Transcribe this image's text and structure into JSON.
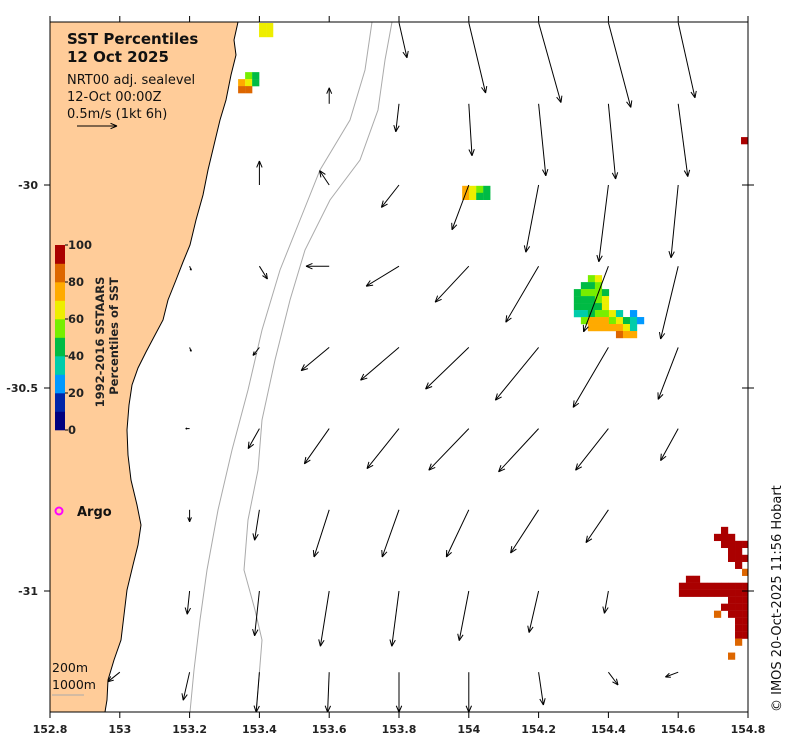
{
  "title": {
    "line1": "SST Percentiles",
    "line2": "12 Oct 2025"
  },
  "info": {
    "line1": "NRT00 adj. sealevel",
    "line2": "12-Oct 00:00Z",
    "line3": "0.5m/s (1kt 6h)"
  },
  "reference_vector": {
    "speed_ms": 0.5
  },
  "colorbar": {
    "label1": "1992-2016 SSTAARS",
    "label2": "Percentiles of SST",
    "ticks": [
      "0",
      "20",
      "40",
      "60",
      "80",
      "100"
    ],
    "colors": [
      "#00007f",
      "#0026a8",
      "#0099ff",
      "#00ccaa",
      "#00bb44",
      "#77ee00",
      "#eeee00",
      "#ffaa00",
      "#dd6600",
      "#aa0000"
    ]
  },
  "argo": {
    "label": "Argo",
    "color": "#ff00ff"
  },
  "bathymetry_legend": {
    "line1": "200m",
    "line2": "1000m"
  },
  "credit": "© IMOS 20-Oct-2025 11:56 Hobart",
  "colors": {
    "land": "#ffcc99",
    "bathy": "#aaaaaa"
  },
  "chart_data": {
    "type": "map",
    "xlim": [
      152.8,
      154.8
    ],
    "ylim": [
      -31.3,
      -29.6
    ],
    "x_ticks": [
      "152.8",
      "153",
      "153.2",
      "153.4",
      "153.6",
      "153.8",
      "154",
      "154.2",
      "154.4",
      "154.6",
      "154.8"
    ],
    "y_ticks": [
      "-30",
      "-30.5",
      "-31"
    ],
    "sst_cell_size_deg": [
      0.0201,
      0.0172
    ],
    "sst_clusters": [
      {
        "lon": 153.399,
        "lat": -29.601,
        "rows": [
          "66",
          "66"
        ]
      },
      {
        "lon": 153.339,
        "lat": -29.722,
        "rows": [
          ".54",
          "764",
          "88."
        ]
      },
      {
        "lon": 153.981,
        "lat": -30.002,
        "rows": [
          "7654",
          "7644"
        ]
      },
      {
        "lon": 154.301,
        "lat": -30.222,
        "rows": [
          "..56......",
          ".445......",
          "45554.....",
          "44456.....",
          "44446.....",
          "3345563.2.",
          ".577756432",
          "..7777763.",
          "......877."
        ]
      },
      {
        "lon": 154.602,
        "lat": -30.842,
        "rows": [
          "......9...",
          ".....999..",
          "......9999",
          ".......99.",
          ".......999",
          "........9.",
          ".........8",
          ".99.......",
          "9999999999",
          "9999999999",
          ".......999",
          "......9999",
          ".....8.999",
          "........99",
          "........99",
          "........99",
          "........8.",
          "..........",
          ".......8.."
        ]
      },
      {
        "lon": 154.78,
        "lat": -29.882,
        "rows": [
          "9"
        ]
      }
    ],
    "current_grid": {
      "lons": [
        153.0,
        153.2,
        153.4,
        153.6,
        153.8,
        154.0,
        154.2,
        154.4,
        154.6
      ],
      "rows": [
        {
          "lat": -29.6,
          "uv": [
            null,
            null,
            null,
            null,
            [
              0.1,
              -0.44
            ],
            [
              0.21,
              -0.88
            ],
            [
              0.28,
              -1.0
            ],
            [
              0.28,
              -1.06
            ],
            [
              0.21,
              -0.94
            ]
          ]
        },
        {
          "lat": -29.8,
          "uv": [
            null,
            null,
            null,
            [
              0,
              0.2
            ],
            [
              -0.04,
              -0.35
            ],
            [
              0.04,
              -0.65
            ],
            [
              0.09,
              -0.9
            ],
            [
              0.09,
              -0.94
            ],
            [
              0.12,
              -0.91
            ]
          ]
        },
        {
          "lat": -30.0,
          "uv": [
            null,
            null,
            [
              0,
              0.3
            ],
            [
              -0.12,
              0.18
            ],
            [
              -0.22,
              -0.28
            ],
            [
              -0.21,
              -0.56
            ],
            [
              -0.16,
              -0.84
            ],
            [
              -0.12,
              -0.96
            ],
            [
              -0.09,
              -0.91
            ]
          ]
        },
        {
          "lat": -30.2,
          "uv": [
            null,
            [
              0.02,
              -0.05
            ],
            [
              0.1,
              -0.16
            ],
            [
              -0.29,
              0
            ],
            [
              -0.41,
              -0.25
            ],
            [
              -0.42,
              -0.45
            ],
            [
              -0.41,
              -0.7
            ],
            [
              -0.31,
              -0.82
            ],
            [
              -0.22,
              -0.91
            ]
          ]
        },
        {
          "lat": -30.4,
          "uv": [
            null,
            [
              0.02,
              -0.05
            ],
            [
              -0.08,
              -0.1
            ],
            [
              -0.35,
              -0.29
            ],
            [
              -0.48,
              -0.41
            ],
            [
              -0.54,
              -0.52
            ],
            [
              -0.54,
              -0.66
            ],
            [
              -0.44,
              -0.75
            ],
            [
              -0.25,
              -0.65
            ]
          ]
        },
        {
          "lat": -30.6,
          "uv": [
            null,
            [
              -0.05,
              0
            ],
            [
              -0.14,
              -0.25
            ],
            [
              -0.31,
              -0.44
            ],
            [
              -0.4,
              -0.5
            ],
            [
              -0.5,
              -0.52
            ],
            [
              -0.5,
              -0.54
            ],
            [
              -0.41,
              -0.52
            ],
            [
              -0.22,
              -0.4
            ]
          ]
        },
        {
          "lat": -30.8,
          "uv": [
            null,
            [
              0,
              -0.15
            ],
            [
              -0.06,
              -0.38
            ],
            [
              -0.19,
              -0.59
            ],
            [
              -0.21,
              -0.59
            ],
            [
              -0.28,
              -0.59
            ],
            [
              -0.35,
              -0.54
            ],
            [
              -0.28,
              -0.41
            ],
            null
          ]
        },
        {
          "lat": -31.0,
          "uv": [
            null,
            [
              -0.03,
              -0.29
            ],
            [
              -0.06,
              -0.56
            ],
            [
              -0.11,
              -0.69
            ],
            [
              -0.09,
              -0.69
            ],
            [
              -0.12,
              -0.62
            ],
            [
              -0.12,
              -0.52
            ],
            [
              -0.05,
              -0.28
            ],
            null
          ]
        },
        {
          "lat": -31.2,
          "uv": [
            [
              -0.15,
              -0.12
            ],
            [
              -0.08,
              -0.35
            ],
            [
              -0.04,
              -0.5
            ],
            [
              -0.02,
              -0.5
            ],
            [
              0,
              -0.5
            ],
            [
              0,
              -0.5
            ],
            [
              0.06,
              -0.41
            ],
            [
              0.12,
              -0.16
            ],
            [
              -0.16,
              -0.06
            ]
          ]
        }
      ]
    }
  }
}
